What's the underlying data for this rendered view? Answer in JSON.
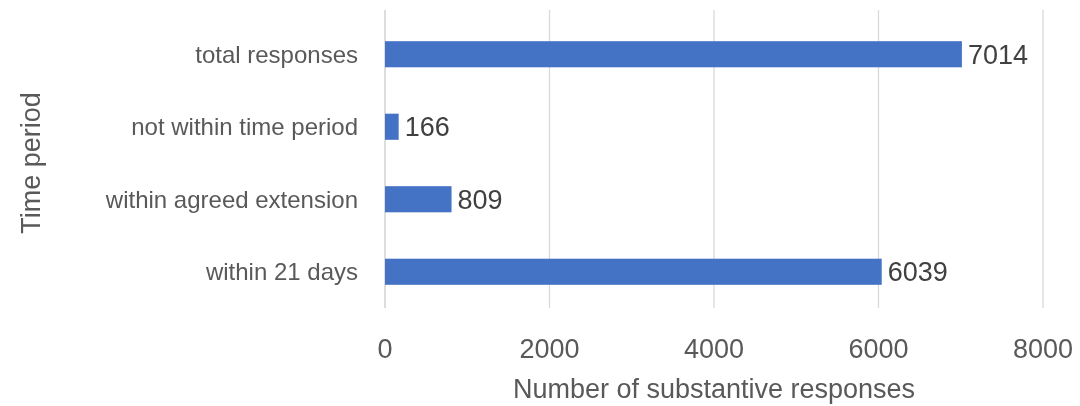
{
  "chart_data": {
    "type": "bar",
    "orientation": "horizontal",
    "categories": [
      "total responses",
      "not within time period",
      "within agreed extension",
      "within 21 days"
    ],
    "values": [
      7014,
      166,
      809,
      6039
    ],
    "color": "#4472c4",
    "data_labels": true,
    "xlim": [
      0,
      8000
    ],
    "xticks": [
      0,
      2000,
      4000,
      6000,
      8000
    ],
    "grid": "x",
    "xlabel": "Number of substantive responses",
    "ylabel": "Time period"
  }
}
